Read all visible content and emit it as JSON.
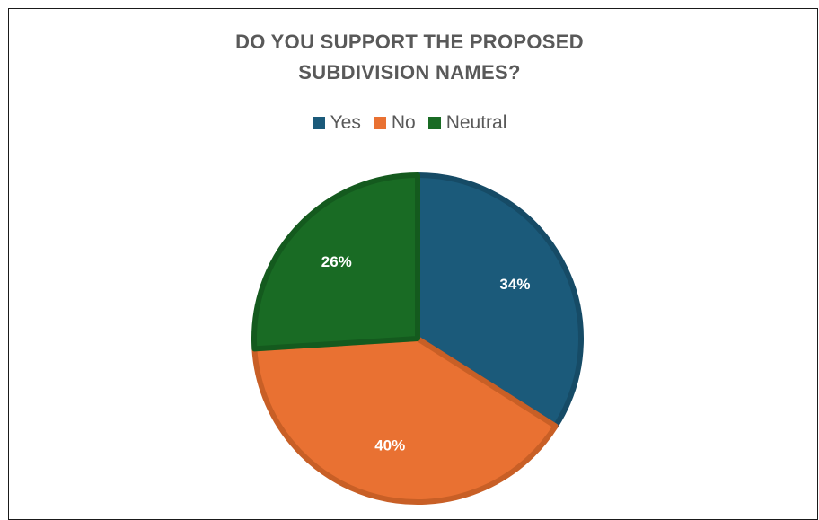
{
  "chart_data": {
    "type": "pie",
    "title_lines": [
      "DO YOU SUPPORT THE PROPOSED",
      "SUBDIVISION NAMES?"
    ],
    "categories": [
      "Yes",
      "No",
      "Neutral"
    ],
    "values": [
      34,
      40,
      26
    ],
    "labels": [
      "34%",
      "40%",
      "26%"
    ],
    "colors": [
      "#1b5a7a",
      "#e97132",
      "#196b24"
    ],
    "edge_colors": [
      "#164b66",
      "#c85f26",
      "#145a1e"
    ],
    "legend_position": "top"
  }
}
